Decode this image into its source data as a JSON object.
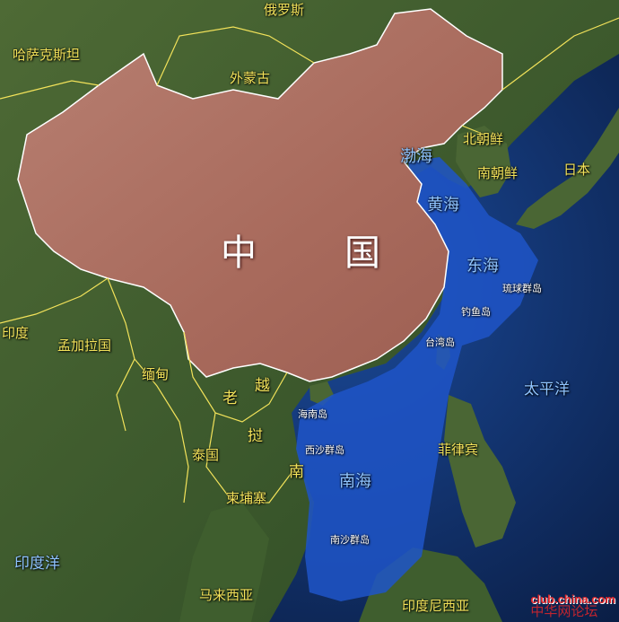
{
  "colors": {
    "ocean_deep": "#0f2f6e",
    "sea_highlight": "#1e55c8",
    "land": "#3b5a2a",
    "china_fill": "#b37466",
    "border_yellow": "#f2e25a",
    "coast_white": "#ffffff"
  },
  "country_labels": {
    "russia": "俄罗斯",
    "kazakhstan": "哈萨克斯坦",
    "mongolia": "外蒙古",
    "north_korea": "北朝鲜",
    "south_korea": "南朝鲜",
    "japan": "日本",
    "india": "印度",
    "bangladesh": "孟加拉国",
    "myanmar": "缅甸",
    "laos": "老",
    "vietnam_1": "越",
    "vietnam_2": "南",
    "cambodia_label": "挝",
    "thailand": "泰国",
    "cambodia": "柬埔寨",
    "philippines": "菲律宾",
    "malaysia": "马来西亚",
    "indonesia": "印度尼西亚"
  },
  "china": {
    "char_1": "中",
    "char_2": "国"
  },
  "sea_labels": {
    "bohai": "渤海",
    "yellow_sea": "黄海",
    "east_sea": "东海",
    "south_sea": "南海",
    "pacific": "太平洋",
    "indian_ocean": "印度洋"
  },
  "islet_labels": {
    "ryukyu": "琉球群岛",
    "diaoyu": "钓鱼岛",
    "taiwan": "台湾岛",
    "hainan": "海南岛",
    "xisha": "西沙群岛",
    "nansha": "南沙群岛"
  },
  "watermark": {
    "site": "club.china.com",
    "name": "中华网论坛"
  }
}
